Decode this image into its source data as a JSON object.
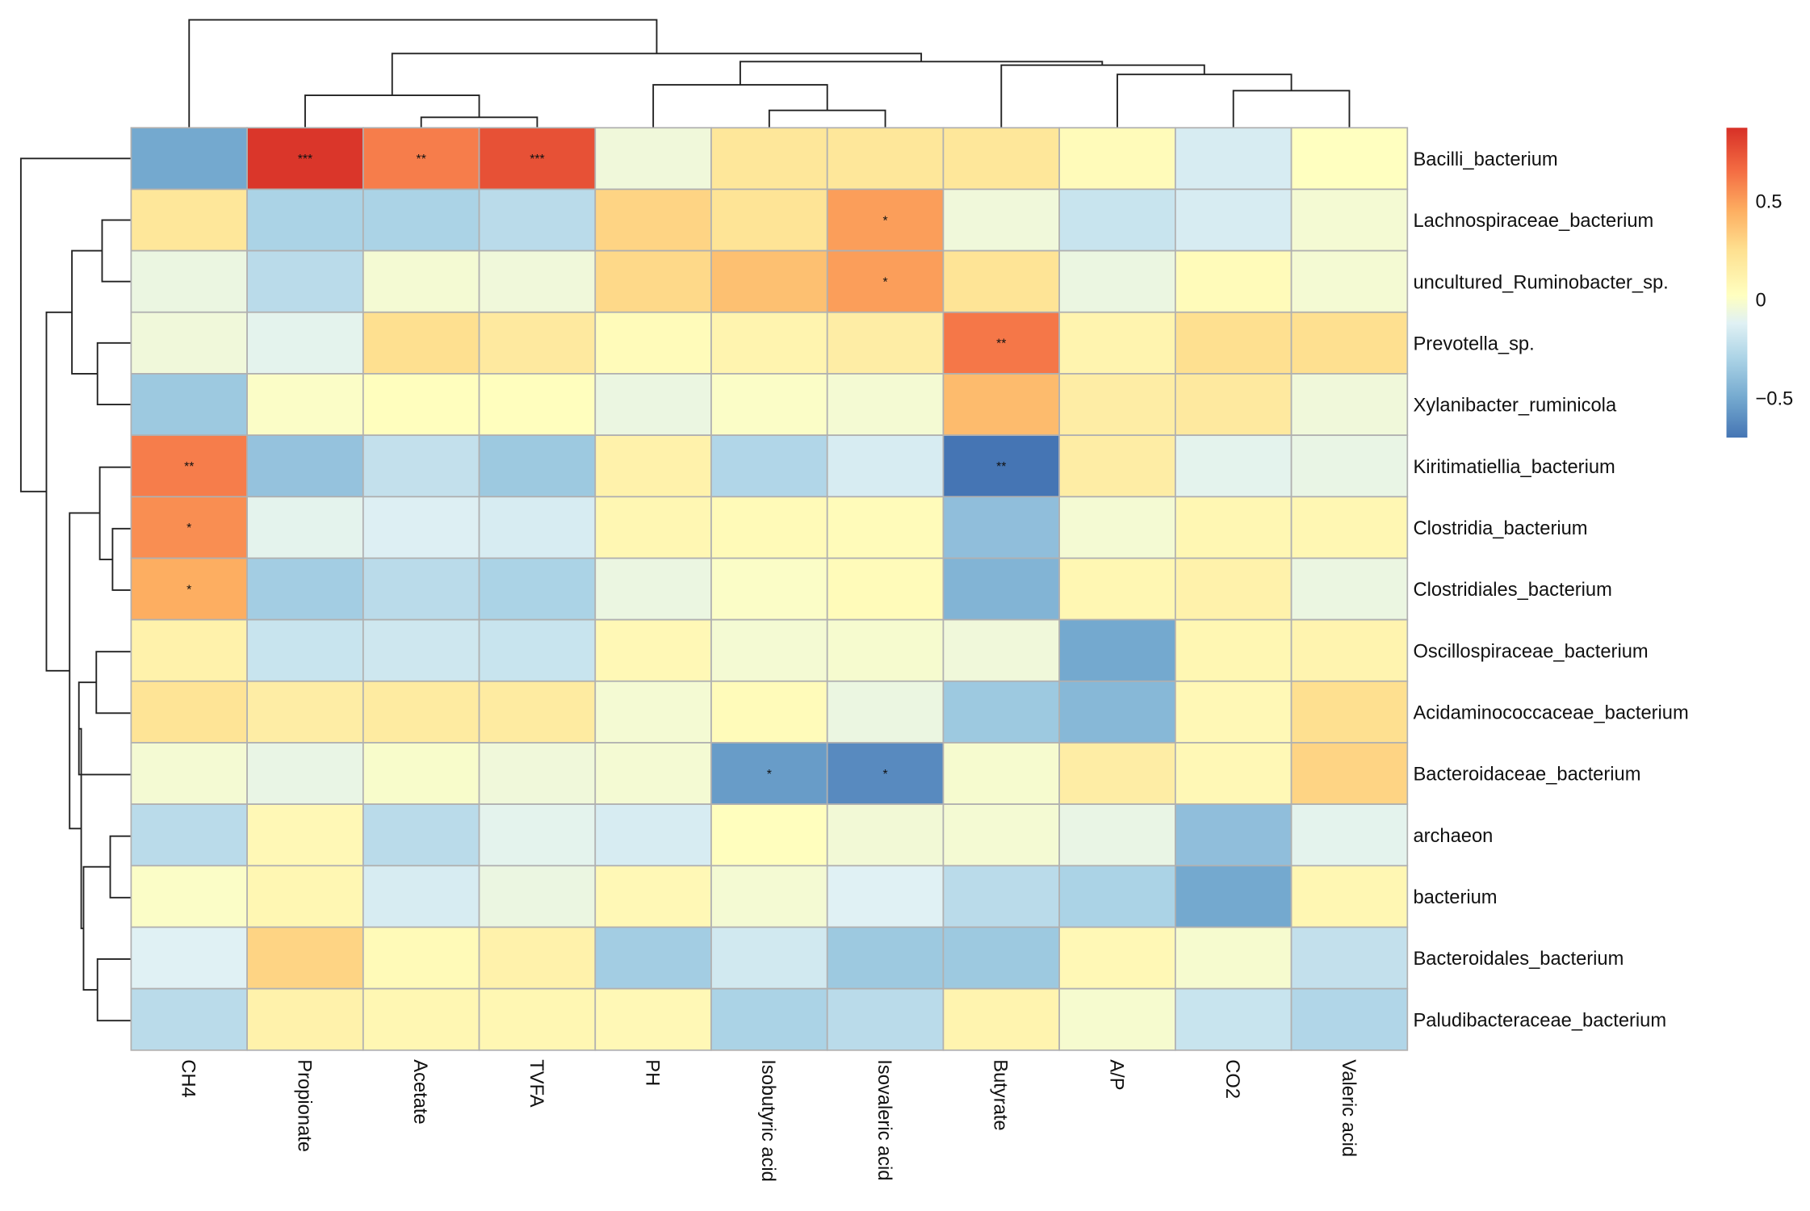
{
  "chart_data": {
    "type": "heatmap",
    "title": "",
    "columns": [
      "CH4",
      "Propionate",
      "Acetate",
      "TVFA",
      "PH",
      "Isobutyric acid",
      "Isovaleric acid",
      "Butyrate",
      "A/P",
      "CO2",
      "Valeric acid"
    ],
    "rows": [
      "Bacilli_bacterium",
      "Lachnospiraceae_bacterium",
      "uncultured_Ruminobacter_sp.",
      "Prevotella_sp.",
      "Xylanibacter_ruminicola",
      "Kiritimatiellia_bacterium",
      "Clostridia_bacterium",
      "Clostridiales_bacterium",
      "Oscillospiraceae_bacterium",
      "Acidaminococcaceae_bacterium",
      "Bacteroidaceae_bacterium",
      "archaeon",
      "bacterium",
      "Bacteroidales_bacterium",
      "Paludibacteraceae_bacterium"
    ],
    "values": [
      [
        -0.5,
        0.85,
        0.6,
        0.75,
        -0.05,
        0.2,
        0.2,
        0.2,
        0.05,
        -0.15,
        0.02
      ],
      [
        0.2,
        -0.3,
        -0.3,
        -0.25,
        0.3,
        0.22,
        0.5,
        -0.05,
        -0.2,
        -0.15,
        -0.03
      ],
      [
        -0.07,
        -0.25,
        -0.03,
        -0.05,
        0.28,
        0.38,
        0.5,
        0.22,
        -0.07,
        0.05,
        -0.03
      ],
      [
        -0.05,
        -0.1,
        0.25,
        0.18,
        0.05,
        0.1,
        0.15,
        0.62,
        0.1,
        0.25,
        0.25
      ],
      [
        -0.35,
        0.0,
        0.03,
        0.03,
        -0.07,
        0.0,
        -0.03,
        0.4,
        0.15,
        0.18,
        -0.05
      ],
      [
        0.6,
        -0.38,
        -0.22,
        -0.35,
        0.12,
        -0.28,
        -0.15,
        -0.72,
        0.15,
        -0.1,
        -0.08
      ],
      [
        0.55,
        -0.1,
        -0.13,
        -0.15,
        0.08,
        0.06,
        0.05,
        -0.4,
        -0.03,
        0.08,
        0.08
      ],
      [
        0.45,
        -0.33,
        -0.25,
        -0.3,
        -0.07,
        0.0,
        0.05,
        -0.45,
        0.08,
        0.12,
        -0.07
      ],
      [
        0.12,
        -0.2,
        -0.18,
        -0.2,
        0.07,
        -0.03,
        -0.02,
        -0.05,
        -0.5,
        0.08,
        0.1
      ],
      [
        0.22,
        0.15,
        0.17,
        0.17,
        -0.03,
        0.05,
        -0.07,
        -0.35,
        -0.43,
        0.07,
        0.25
      ],
      [
        -0.03,
        -0.08,
        -0.01,
        -0.05,
        -0.03,
        -0.55,
        -0.62,
        -0.02,
        0.15,
        0.07,
        0.3
      ],
      [
        -0.25,
        0.07,
        -0.25,
        -0.1,
        -0.15,
        0.03,
        -0.04,
        -0.03,
        -0.08,
        -0.4,
        -0.1
      ],
      [
        0.0,
        0.08,
        -0.15,
        -0.07,
        0.07,
        -0.03,
        -0.12,
        -0.25,
        -0.3,
        -0.5,
        0.08
      ],
      [
        -0.12,
        0.3,
        0.06,
        0.12,
        -0.33,
        -0.17,
        -0.35,
        -0.35,
        0.07,
        -0.02,
        -0.22
      ],
      [
        -0.25,
        0.12,
        0.08,
        0.08,
        0.07,
        -0.3,
        -0.25,
        0.1,
        -0.02,
        -0.2,
        -0.28
      ]
    ],
    "significance": [
      [
        "",
        "***",
        "**",
        "***",
        "",
        "",
        "",
        "",
        "",
        "",
        ""
      ],
      [
        "",
        "",
        "",
        "",
        "",
        "",
        "*",
        "",
        "",
        "",
        ""
      ],
      [
        "",
        "",
        "",
        "",
        "",
        "",
        "*",
        "",
        "",
        "",
        ""
      ],
      [
        "",
        "",
        "",
        "",
        "",
        "",
        "",
        "**",
        "",
        "",
        ""
      ],
      [
        "",
        "",
        "",
        "",
        "",
        "",
        "",
        "",
        "",
        "",
        ""
      ],
      [
        "**",
        "",
        "",
        "",
        "",
        "",
        "",
        "**",
        "",
        "",
        ""
      ],
      [
        "*",
        "",
        "",
        "",
        "",
        "",
        "",
        "",
        "",
        "",
        ""
      ],
      [
        "*",
        "",
        "",
        "",
        "",
        "",
        "",
        "",
        "",
        "",
        ""
      ],
      [
        "",
        "",
        "",
        "",
        "",
        "",
        "",
        "",
        "",
        "",
        ""
      ],
      [
        "",
        "",
        "",
        "",
        "",
        "",
        "",
        "",
        "",
        "",
        ""
      ],
      [
        "",
        "",
        "",
        "",
        "",
        "*",
        "*",
        "",
        "",
        "",
        ""
      ],
      [
        "",
        "",
        "",
        "",
        "",
        "",
        "",
        "",
        "",
        "",
        ""
      ],
      [
        "",
        "",
        "",
        "",
        "",
        "",
        "",
        "",
        "",
        "",
        ""
      ],
      [
        "",
        "",
        "",
        "",
        "",
        "",
        "",
        "",
        "",
        "",
        ""
      ],
      [
        "",
        "",
        "",
        "",
        "",
        "",
        "",
        "",
        "",
        "",
        ""
      ]
    ],
    "colorscale": {
      "range": [
        -0.7,
        0.87
      ],
      "ticks": [
        "0.5",
        "0",
        "−0.5"
      ],
      "tick_values": [
        0.5,
        0,
        -0.5
      ],
      "stops": [
        [
          -0.7,
          "#4575b4"
        ],
        [
          -0.5,
          "#74a9cf"
        ],
        [
          -0.3,
          "#abd3e6"
        ],
        [
          -0.12,
          "#e0f1f4"
        ],
        [
          0.02,
          "#ffffc0"
        ],
        [
          0.25,
          "#fee090"
        ],
        [
          0.45,
          "#fdae61"
        ],
        [
          0.65,
          "#f46d43"
        ],
        [
          0.87,
          "#d73027"
        ]
      ]
    },
    "legend_position": "right"
  }
}
